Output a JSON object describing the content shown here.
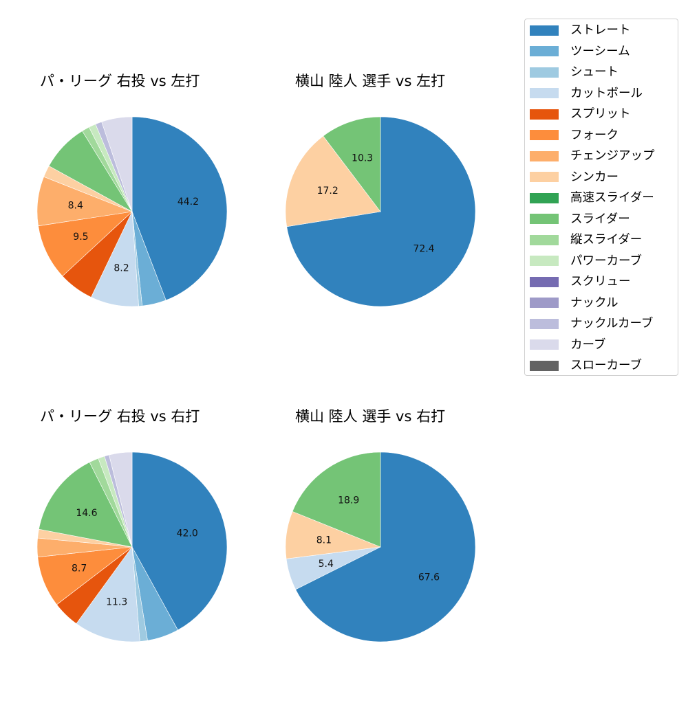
{
  "legend": {
    "items": [
      {
        "label": "ストレート",
        "color": "#3182bd"
      },
      {
        "label": "ツーシーム",
        "color": "#6baed6"
      },
      {
        "label": "シュート",
        "color": "#9ecae1"
      },
      {
        "label": "カットボール",
        "color": "#c6dbef"
      },
      {
        "label": "スプリット",
        "color": "#e6550d"
      },
      {
        "label": "フォーク",
        "color": "#fd8d3c"
      },
      {
        "label": "チェンジアップ",
        "color": "#fdae6b"
      },
      {
        "label": "シンカー",
        "color": "#fdd0a2"
      },
      {
        "label": "高速スライダー",
        "color": "#31a354"
      },
      {
        "label": "スライダー",
        "color": "#74c476"
      },
      {
        "label": "縦スライダー",
        "color": "#a1d99b"
      },
      {
        "label": "パワーカーブ",
        "color": "#c7e9c0"
      },
      {
        "label": "スクリュー",
        "color": "#756bb1"
      },
      {
        "label": "ナックル",
        "color": "#9e9ac8"
      },
      {
        "label": "ナックルカーブ",
        "color": "#bcbddc"
      },
      {
        "label": "カーブ",
        "color": "#dadaeb"
      },
      {
        "label": "スローカーブ",
        "color": "#636363"
      }
    ]
  },
  "panels": [
    {
      "title": "パ・リーグ 右投 vs 左打"
    },
    {
      "title": "横山 陸人 選手 vs 左打"
    },
    {
      "title": "パ・リーグ 右投 vs 右打"
    },
    {
      "title": "横山 陸人 選手 vs 右打"
    }
  ],
  "chart_data": [
    {
      "type": "pie",
      "title": "パ・リーグ 右投 vs 左打",
      "start_angle": 90,
      "direction": "clockwise",
      "label_threshold": 8.0,
      "categories": [
        "ストレート",
        "ツーシーム",
        "シュート",
        "カットボール",
        "スプリット",
        "フォーク",
        "チェンジアップ",
        "シンカー",
        "スライダー",
        "縦スライダー",
        "パワーカーブ",
        "ナックルカーブ",
        "カーブ"
      ],
      "values": [
        44.2,
        4.1,
        0.6,
        8.2,
        6.0,
        9.5,
        8.4,
        2.0,
        8.2,
        1.3,
        1.2,
        1.1,
        5.2
      ],
      "labeled_values": {
        "ストレート": 44.2,
        "カットボール": 8.2,
        "フォーク": 9.5,
        "チェンジアップ": 8.4
      }
    },
    {
      "type": "pie",
      "title": "横山 陸人 選手 vs 左打",
      "start_angle": 90,
      "direction": "clockwise",
      "label_threshold": 5.0,
      "categories": [
        "ストレート",
        "シンカー",
        "スライダー"
      ],
      "values": [
        72.4,
        17.2,
        10.3
      ],
      "labeled_values": {
        "ストレート": 72.4,
        "シンカー": 17.2,
        "スライダー": 10.3
      }
    },
    {
      "type": "pie",
      "title": "パ・リーグ 右投 vs 右打",
      "start_angle": 90,
      "direction": "clockwise",
      "label_threshold": 8.0,
      "categories": [
        "ストレート",
        "ツーシーム",
        "シュート",
        "カットボール",
        "スプリット",
        "フォーク",
        "チェンジアップ",
        "シンカー",
        "スライダー",
        "縦スライダー",
        "パワーカーブ",
        "ナックルカーブ",
        "カーブ"
      ],
      "values": [
        42.0,
        5.4,
        1.3,
        11.3,
        4.6,
        8.7,
        3.2,
        1.5,
        14.6,
        1.6,
        1.1,
        0.8,
        3.9
      ],
      "labeled_values": {
        "ストレート": 42.0,
        "カットボール": 11.3,
        "フォーク": 8.7,
        "スライダー": 14.6
      }
    },
    {
      "type": "pie",
      "title": "横山 陸人 選手 vs 右打",
      "start_angle": 90,
      "direction": "clockwise",
      "label_threshold": 5.0,
      "categories": [
        "ストレート",
        "カットボール",
        "シンカー",
        "スライダー"
      ],
      "values": [
        67.6,
        5.4,
        8.1,
        18.9
      ],
      "labeled_values": {
        "ストレート": 67.6,
        "カットボール": 5.4,
        "シンカー": 8.1,
        "スライダー": 18.9
      }
    }
  ]
}
